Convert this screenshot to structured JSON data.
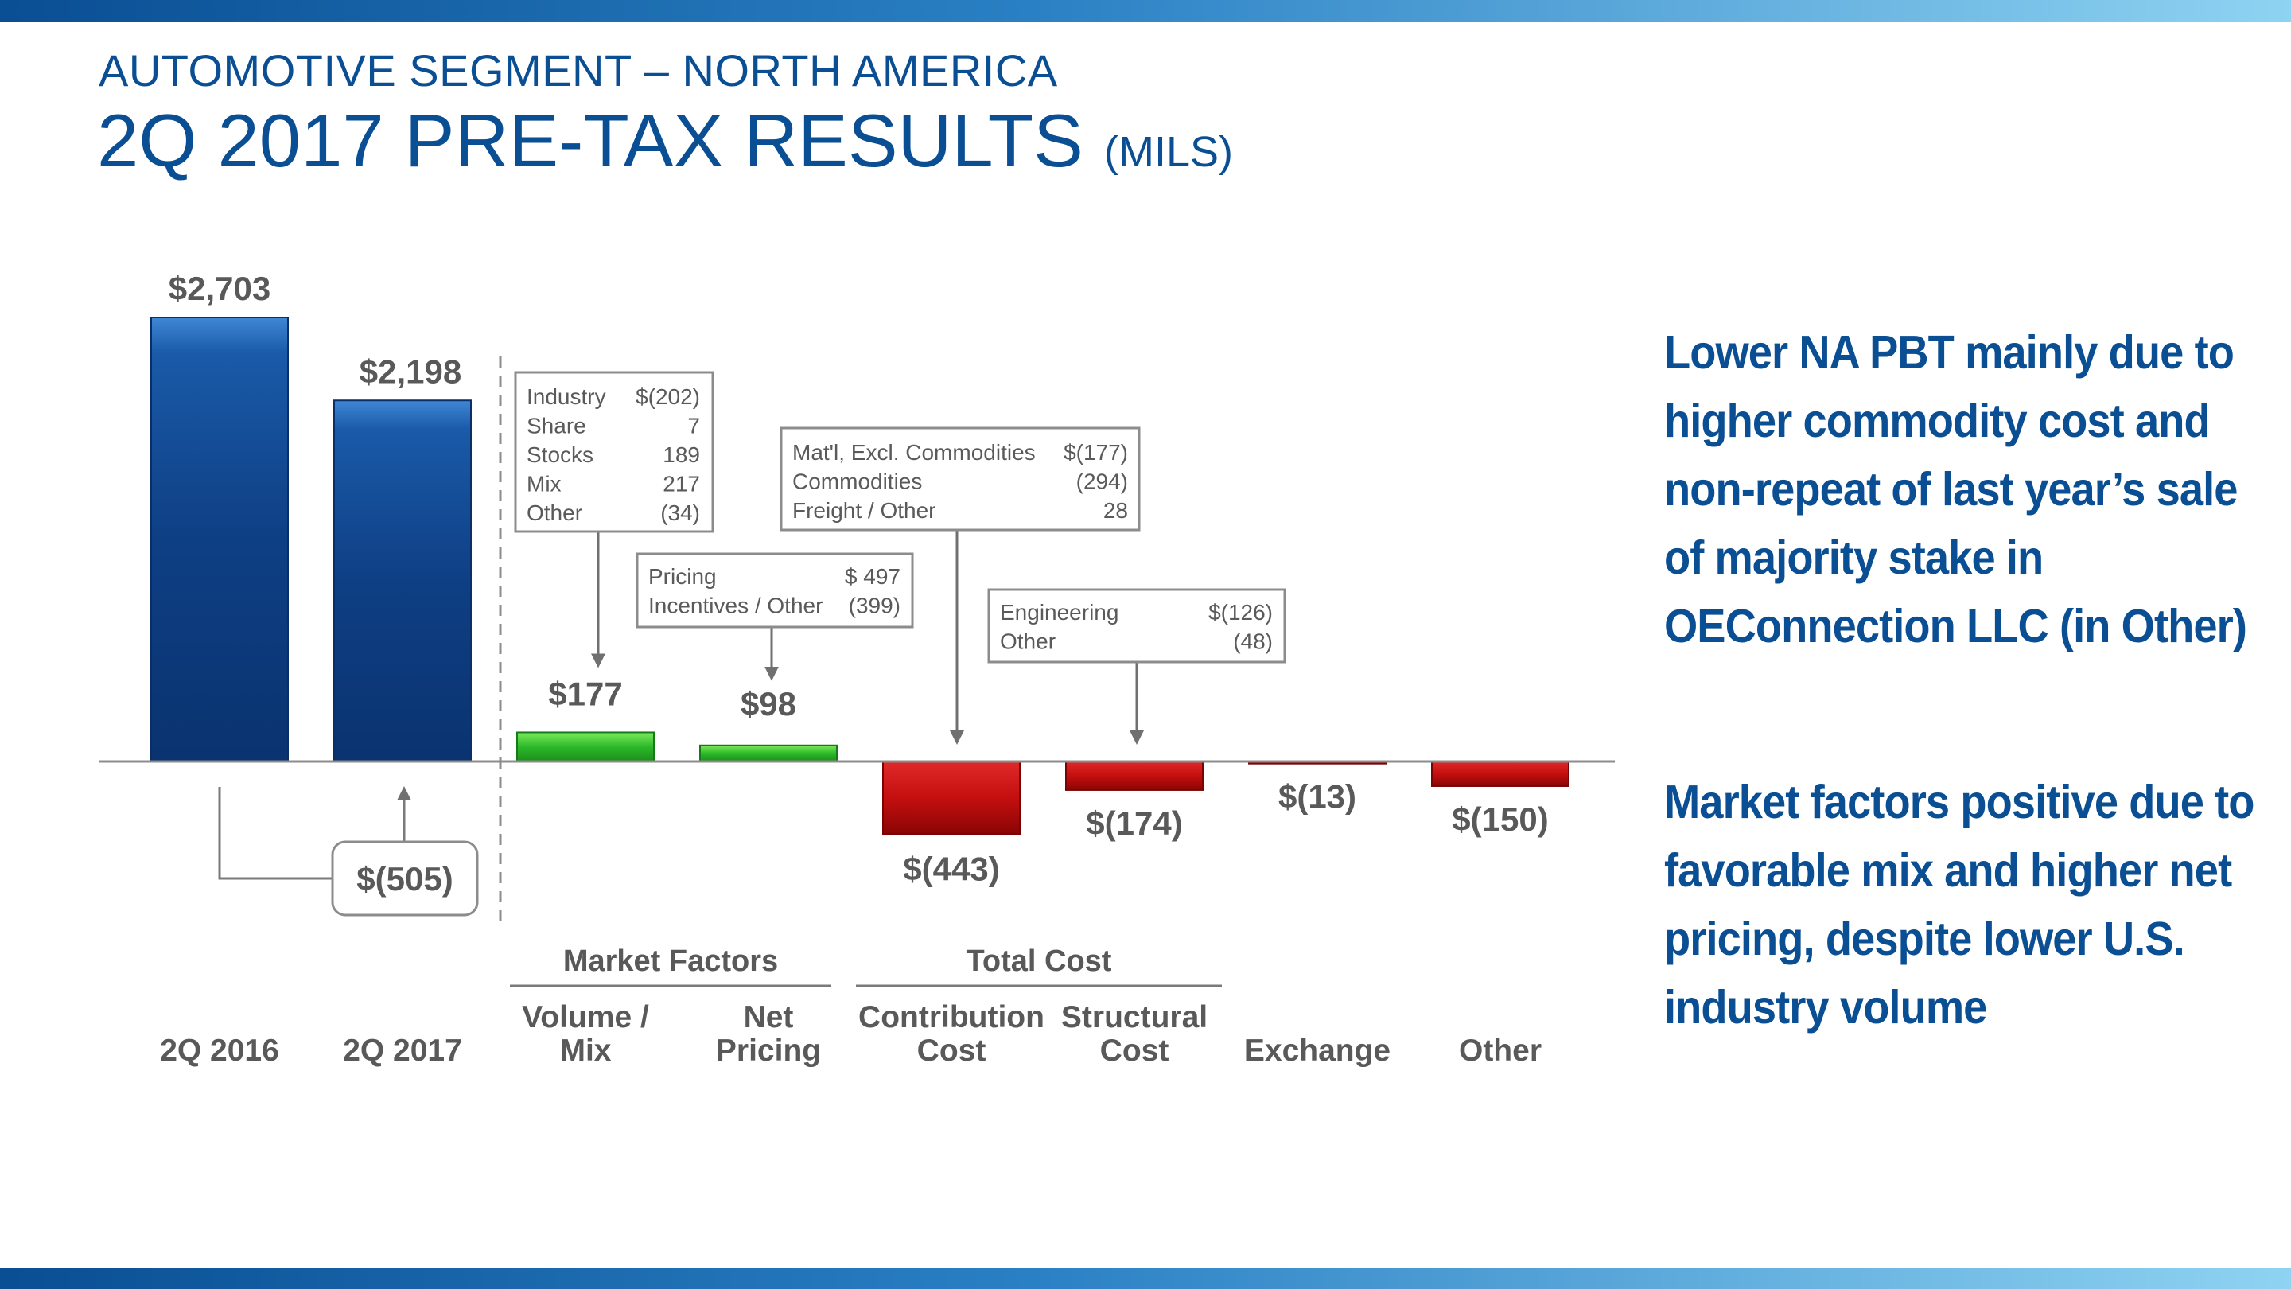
{
  "header": {
    "segment": "AUTOMOTIVE SEGMENT – NORTH AMERICA",
    "title": "2Q 2017 PRE-TAX RESULTS",
    "unit": "(MILS)"
  },
  "colors": {
    "brand_blue": "#0a4e93",
    "bar_blue": "#0d3f82",
    "positive": "#2db82d",
    "negative": "#c81010",
    "label_gray": "#595959",
    "axis": "#8c8c8c"
  },
  "chart_data": {
    "type": "bar",
    "subtype": "waterfall",
    "title": "2Q 2017 PRE-TAX RESULTS (MILS)",
    "categories": [
      "2Q 2016",
      "2Q 2017",
      "Volume / Mix",
      "Net Pricing",
      "Contribution Cost",
      "Structural Cost",
      "Exchange",
      "Other"
    ],
    "values": [
      2703,
      2198,
      177,
      98,
      -443,
      -174,
      -13,
      -150
    ],
    "value_labels": [
      "$2,703",
      "$2,198",
      "$177",
      "$98",
      "$(443)",
      "$(174)",
      "$(13)",
      "$(150)"
    ],
    "kinds": [
      "total",
      "total",
      "increase",
      "increase",
      "decrease",
      "decrease",
      "decrease",
      "decrease"
    ],
    "category_lines": [
      [
        "2Q 2016"
      ],
      [
        "2Q 2017"
      ],
      [
        "Volume /",
        "Mix"
      ],
      [
        "Net",
        "Pricing"
      ],
      [
        "Contribution",
        "Cost"
      ],
      [
        "Structural",
        "Cost"
      ],
      [
        "Exchange"
      ],
      [
        "Other"
      ]
    ],
    "groups": [
      {
        "label": "Market Factors",
        "members": [
          "Volume / Mix",
          "Net Pricing"
        ]
      },
      {
        "label": "Total Cost",
        "members": [
          "Contribution Cost",
          "Structural Cost"
        ]
      }
    ],
    "change": {
      "value": -505,
      "label": "$(505)"
    },
    "ylim": [
      -600,
      3000
    ],
    "xlabel": "",
    "ylabel": "",
    "annotations": [
      {
        "target": "Volume / Mix",
        "rows": [
          [
            "Industry",
            "$(202)"
          ],
          [
            "Share",
            "7"
          ],
          [
            "Stocks",
            "189"
          ],
          [
            "Mix",
            "217"
          ],
          [
            "Other",
            "(34)"
          ]
        ]
      },
      {
        "target": "Net Pricing",
        "rows": [
          [
            "Pricing",
            "$ 497"
          ],
          [
            "Incentives / Other",
            "(399)"
          ]
        ]
      },
      {
        "target": "Contribution Cost",
        "rows": [
          [
            "Mat'l, Excl. Commodities",
            "$(177)"
          ],
          [
            "Commodities",
            "(294)"
          ],
          [
            "Freight / Other",
            "28"
          ]
        ]
      },
      {
        "target": "Structural Cost",
        "rows": [
          [
            "Engineering",
            "$(126)"
          ],
          [
            "Other",
            "(48)"
          ]
        ]
      }
    ]
  },
  "commentary": {
    "point1": "Lower NA PBT mainly due to higher commodity cost and non-repeat of last year’s sale of majority stake in OEConnection LLC (in Other)",
    "point2": "Market factors positive due to favorable mix and higher net pricing, despite lower U.S. industry volume"
  }
}
